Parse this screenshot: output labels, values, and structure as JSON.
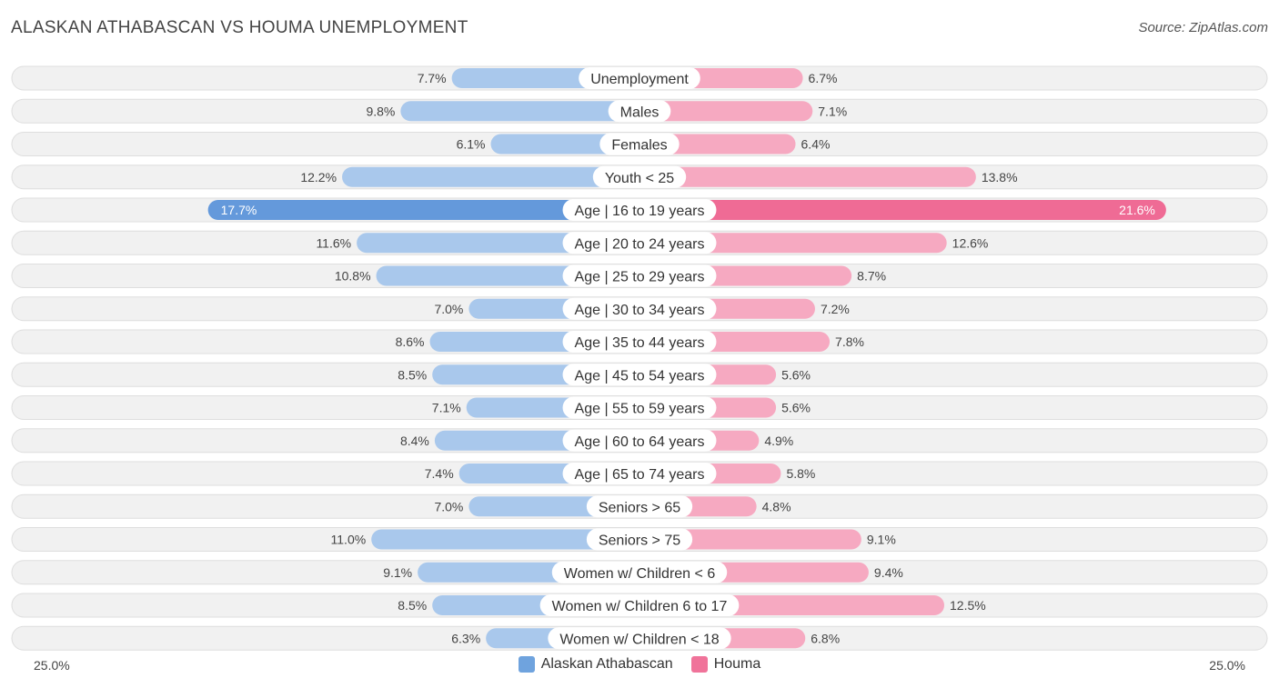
{
  "header": {
    "title": "ALASKAN ATHABASCAN VS HOUMA UNEMPLOYMENT",
    "source": "Source: ZipAtlas.com"
  },
  "axis": {
    "left_label": "25.0%",
    "right_label": "25.0%"
  },
  "legend": [
    {
      "name": "Alaskan Athabascan",
      "color": "#6fa3de"
    },
    {
      "name": "Houma",
      "color": "#f0739a"
    }
  ],
  "colors": {
    "blue_light": "#a9c8ec",
    "blue_dark": "#6499db",
    "pink_light": "#f6a9c1",
    "pink_dark": "#ef6b95"
  },
  "chart_data": {
    "type": "bar",
    "orientation": "horizontal-diverging",
    "title": "ALASKAN ATHABASCAN VS HOUMA UNEMPLOYMENT",
    "xlim": [
      -25,
      25
    ],
    "categories": [
      "Unemployment",
      "Males",
      "Females",
      "Youth < 25",
      "Age | 16 to 19 years",
      "Age | 20 to 24 years",
      "Age | 25 to 29 years",
      "Age | 30 to 34 years",
      "Age | 35 to 44 years",
      "Age | 45 to 54 years",
      "Age | 55 to 59 years",
      "Age | 60 to 64 years",
      "Age | 65 to 74 years",
      "Seniors > 65",
      "Seniors > 75",
      "Women w/ Children < 6",
      "Women w/ Children 6 to 17",
      "Women w/ Children < 18"
    ],
    "series": [
      {
        "name": "Alaskan Athabascan",
        "values": [
          7.7,
          9.8,
          6.1,
          12.2,
          17.7,
          11.6,
          10.8,
          7.0,
          8.6,
          8.5,
          7.1,
          8.4,
          7.4,
          7.0,
          11.0,
          9.1,
          8.5,
          6.3
        ],
        "labels": [
          "7.7%",
          "9.8%",
          "6.1%",
          "12.2%",
          "17.7%",
          "11.6%",
          "10.8%",
          "7.0%",
          "8.6%",
          "8.5%",
          "7.1%",
          "8.4%",
          "7.4%",
          "7.0%",
          "11.0%",
          "9.1%",
          "8.5%",
          "6.3%"
        ]
      },
      {
        "name": "Houma",
        "values": [
          6.7,
          7.1,
          6.4,
          13.8,
          21.6,
          12.6,
          8.7,
          7.2,
          7.8,
          5.6,
          5.6,
          4.9,
          5.8,
          4.8,
          9.1,
          9.4,
          12.5,
          6.8
        ],
        "labels": [
          "6.7%",
          "7.1%",
          "6.4%",
          "13.8%",
          "21.6%",
          "12.6%",
          "8.7%",
          "7.2%",
          "7.8%",
          "5.6%",
          "5.6%",
          "4.9%",
          "5.8%",
          "4.8%",
          "9.1%",
          "9.4%",
          "12.5%",
          "6.8%"
        ]
      }
    ]
  }
}
